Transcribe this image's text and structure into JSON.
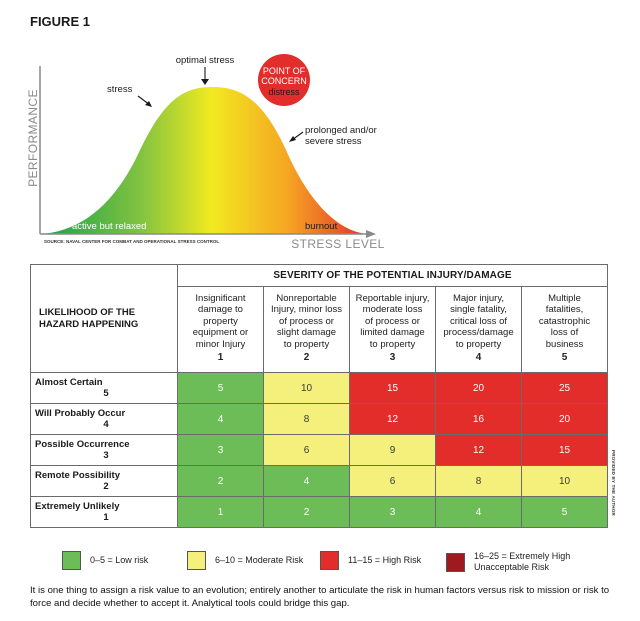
{
  "figure_title": "FIGURE 1",
  "curve": {
    "y_axis_label": "PERFORMANCE",
    "x_axis_label": "STRESS LEVEL",
    "labels": {
      "stress": "stress",
      "optimal": "optimal stress",
      "point_of_concern_line1": "POINT OF",
      "point_of_concern_line2": "CONCERN",
      "distress": "distress",
      "prolonged_line1": "prolonged and/or",
      "prolonged_line2": "severe stress",
      "relaxed": "active but relaxed",
      "burnout": "burnout"
    },
    "source": "SOURCE: NAVAL CENTER FOR COMBAT AND OPERATIONAL STRESS CONTROL",
    "colors": {
      "green": "#4db848",
      "yellow": "#f1ea20",
      "orange": "#f5a623",
      "red": "#e32d2a"
    }
  },
  "matrix": {
    "likelihood_header_line1": "LIKELIHOOD OF THE",
    "likelihood_header_line2": "HAZARD HAPPENING",
    "severity_header": "SEVERITY OF THE POTENTIAL INJURY/DAMAGE",
    "severity_columns": [
      {
        "lines": [
          "Insignificant",
          "damage to",
          "property",
          "equipment or",
          "minor Injury"
        ],
        "num": "1"
      },
      {
        "lines": [
          "Nonreportable",
          "Injury, minor loss",
          "of process or",
          "slight damage",
          "to property"
        ],
        "num": "2"
      },
      {
        "lines": [
          "Reportable injury,",
          "moderate loss",
          "of process or",
          "limited damage",
          "to property"
        ],
        "num": "3"
      },
      {
        "lines": [
          "Major injury,",
          "single fatality,",
          "critical loss of",
          "process/damage",
          "to property"
        ],
        "num": "4"
      },
      {
        "lines": [
          "Multiple",
          "fatalities,",
          "catastrophic",
          "loss of",
          "business"
        ],
        "num": "5"
      }
    ],
    "rows": [
      {
        "label": "Almost Certain",
        "num": "5",
        "values": [
          "5",
          "10",
          "15",
          "20",
          "25"
        ],
        "levels": [
          "low",
          "mod",
          "high",
          "high",
          "high"
        ]
      },
      {
        "label": "Will Probably Occur",
        "num": "4",
        "values": [
          "4",
          "8",
          "12",
          "16",
          "20"
        ],
        "levels": [
          "low",
          "mod",
          "high",
          "high",
          "high"
        ]
      },
      {
        "label": "Possible Occurrence",
        "num": "3",
        "values": [
          "3",
          "6",
          "9",
          "12",
          "15"
        ],
        "levels": [
          "low",
          "mod",
          "mod",
          "high",
          "high"
        ]
      },
      {
        "label": "Remote Possibility",
        "num": "2",
        "values": [
          "2",
          "4",
          "6",
          "8",
          "10"
        ],
        "levels": [
          "low",
          "low",
          "mod",
          "mod",
          "mod"
        ]
      },
      {
        "label": "Extremely Unlikely",
        "num": "1",
        "values": [
          "1",
          "2",
          "3",
          "4",
          "5"
        ],
        "levels": [
          "low",
          "low",
          "low",
          "low",
          "low"
        ]
      }
    ]
  },
  "legend": [
    {
      "text_line1": "0–5 = Low risk",
      "text_line2": "",
      "color": "#6cbd57"
    },
    {
      "text_line1": "6–10 = Moderate Risk",
      "text_line2": "",
      "color": "#f4f07b"
    },
    {
      "text_line1": "11–15 = High Risk",
      "text_line2": "",
      "color": "#e32d2a"
    },
    {
      "text_line1": "16–25 = Extremely High",
      "text_line2": "Unacceptable Risk",
      "color": "#9e1a1f"
    }
  ],
  "caption": "It is one thing to assign a risk value to an evolution; entirely another to articulate the risk in human factors versus risk to mission or risk to force and decide whether to accept it. Analytical tools could bridge this gap.",
  "credit": "PROVIDED BY THE AUTHOR"
}
